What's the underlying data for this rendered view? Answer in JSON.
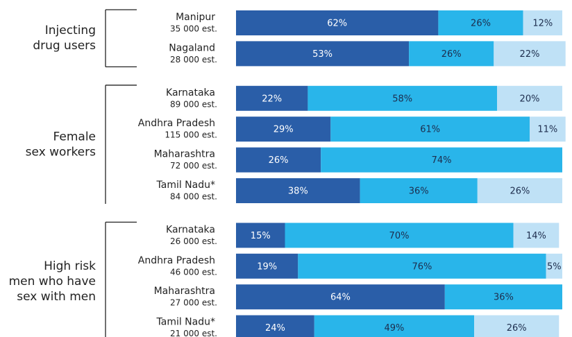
{
  "chart_data": {
    "type": "bar",
    "orientation": "horizontal",
    "stacked": true,
    "groups": [
      {
        "label": [
          "Injecting",
          "drug users"
        ],
        "categories": [
          "Manipur",
          "Nagaland"
        ],
        "estimates": [
          "35 000 est.",
          "28 000 est."
        ],
        "series": [
          {
            "color": "#2a5ea8",
            "values": [
              62,
              53
            ],
            "value_labels": [
              "62%",
              "53%"
            ]
          },
          {
            "color": "#29b5ea",
            "values": [
              26,
              26
            ],
            "value_labels": [
              "26%",
              "26%"
            ]
          },
          {
            "color": "#bfe1f6",
            "values": [
              12,
              22
            ],
            "value_labels": [
              "12%",
              "22%"
            ]
          }
        ]
      },
      {
        "label": [
          "Female",
          "sex workers"
        ],
        "categories": [
          "Karnataka",
          "Andhra Pradesh",
          "Maharashtra",
          "Tamil Nadu*"
        ],
        "estimates": [
          "89 000 est.",
          "115 000 est.",
          "72 000 est.",
          "84 000 est."
        ],
        "series": [
          {
            "color": "#2a5ea8",
            "values": [
              22,
              29,
              26,
              38
            ],
            "value_labels": [
              "22%",
              "29%",
              "26%",
              "38%"
            ]
          },
          {
            "color": "#29b5ea",
            "values": [
              58,
              61,
              74,
              36
            ],
            "value_labels": [
              "58%",
              "61%",
              "74%",
              "36%"
            ]
          },
          {
            "color": "#bfe1f6",
            "values": [
              20,
              11,
              null,
              26
            ],
            "value_labels": [
              "20%",
              "11%",
              null,
              "26%"
            ]
          }
        ]
      },
      {
        "label": [
          "High risk",
          "men who have",
          "sex with men"
        ],
        "categories": [
          "Karnataka",
          "Andhra Pradesh",
          "Maharashtra",
          "Tamil Nadu*"
        ],
        "estimates": [
          "26 000 est.",
          "46 000 est.",
          "27 000 est.",
          "21 000 est."
        ],
        "series": [
          {
            "color": "#2a5ea8",
            "values": [
              15,
              19,
              64,
              24
            ],
            "value_labels": [
              "15%",
              "19%",
              "64%",
              "24%"
            ]
          },
          {
            "color": "#29b5ea",
            "values": [
              70,
              76,
              36,
              49
            ],
            "value_labels": [
              "70%",
              "76%",
              "36%",
              "49%"
            ]
          },
          {
            "color": "#bfe1f6",
            "values": [
              14,
              5,
              null,
              26
            ],
            "value_labels": [
              "14%",
              "5%",
              null,
              "26%"
            ]
          }
        ]
      }
    ]
  }
}
